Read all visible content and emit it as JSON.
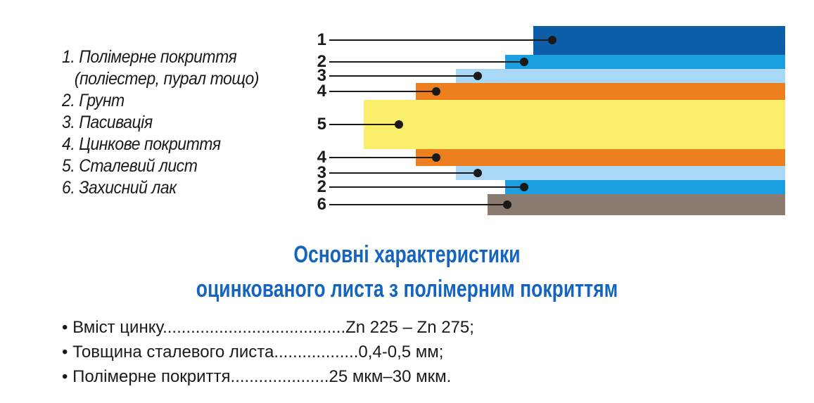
{
  "legend": [
    "1. Полімерне покриття",
    "   (поліестер, пурал тощо)",
    "2. Грунт",
    "3. Пасивація",
    "4. Цинкове покриття",
    "5. Сталевий лист",
    "6. Захисний лак"
  ],
  "layers": [
    {
      "number": "1",
      "color": "#0d5ea8"
    },
    {
      "number": "2",
      "color": "#1aa0e0"
    },
    {
      "number": "3",
      "color": "#a8d8f5"
    },
    {
      "number": "4",
      "color": "#ee7f1e"
    },
    {
      "number": "5",
      "color": "#fbee6a"
    },
    {
      "number": "4",
      "color": "#ee7f1e"
    },
    {
      "number": "3",
      "color": "#a8d8f5"
    },
    {
      "number": "2",
      "color": "#1aa0e0"
    },
    {
      "number": "6",
      "color": "#8a7a70"
    }
  ],
  "heading": {
    "line1": "Основні характеристики",
    "line2": "оцинкованого листа з полімерним покриттям"
  },
  "specs": [
    "• Вміст цинку.......................................Zn 225 – Zn 275;",
    "• Товщина сталевого листа..................0,4-0,5 мм;",
    "• Полімерне покриття.....................25 мкм–30 мкм."
  ]
}
